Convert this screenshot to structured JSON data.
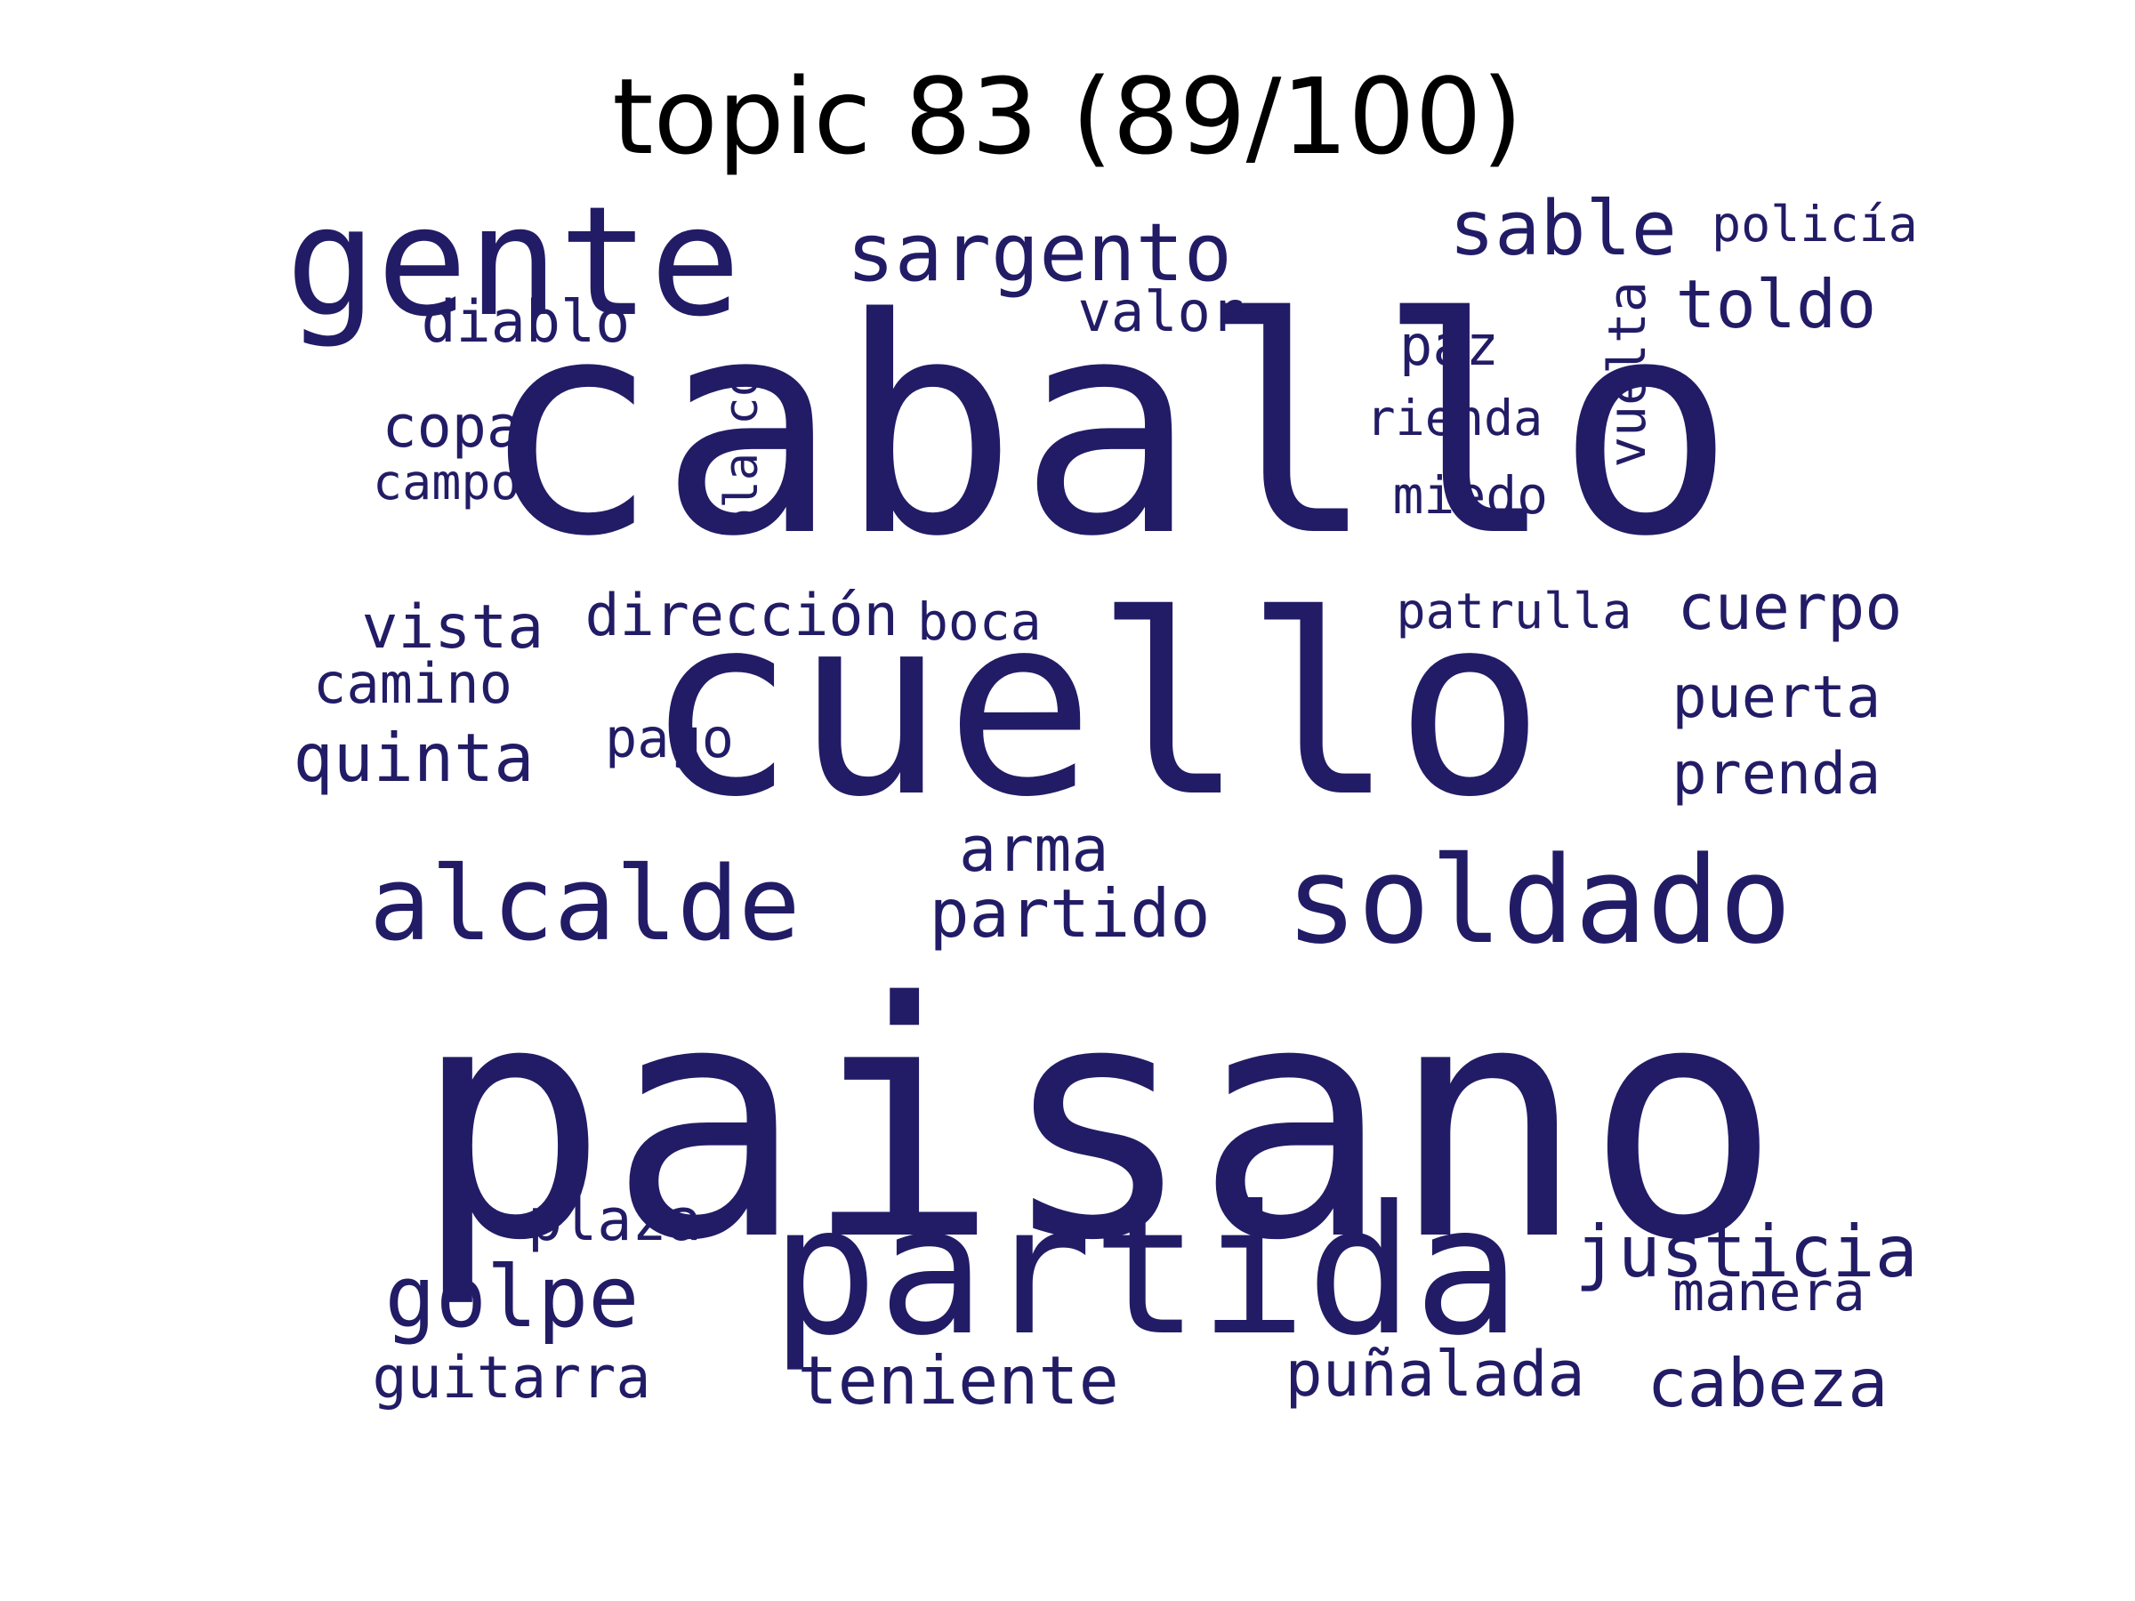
{
  "title": "topic 83 (89/100)",
  "word_color": "#221c66",
  "words": [
    {
      "text": "caballo"
    },
    {
      "text": "paisano"
    },
    {
      "text": "cuello"
    },
    {
      "text": "partida"
    },
    {
      "text": "gente"
    },
    {
      "text": "soldado"
    },
    {
      "text": "alcalde"
    },
    {
      "text": "sargento"
    },
    {
      "text": "sable"
    },
    {
      "text": "golpe"
    },
    {
      "text": "justicia"
    },
    {
      "text": "toldo"
    },
    {
      "text": "teniente"
    },
    {
      "text": "cabeza"
    },
    {
      "text": "cuerpo"
    },
    {
      "text": "quinta"
    },
    {
      "text": "puñalada"
    },
    {
      "text": "partido"
    },
    {
      "text": "arma"
    },
    {
      "text": "guitarra"
    },
    {
      "text": "dirección"
    },
    {
      "text": "vista"
    },
    {
      "text": "puerta"
    },
    {
      "text": "prenda"
    },
    {
      "text": "plaza"
    },
    {
      "text": "manera"
    },
    {
      "text": "camino"
    },
    {
      "text": "diablo"
    },
    {
      "text": "valor"
    },
    {
      "text": "copa"
    },
    {
      "text": "paz"
    },
    {
      "text": "vuelta"
    },
    {
      "text": "patrulla"
    },
    {
      "text": "policía"
    },
    {
      "text": "rienda"
    },
    {
      "text": "miedo"
    },
    {
      "text": "blanco"
    },
    {
      "text": "campo"
    },
    {
      "text": "boca"
    },
    {
      "text": "pago"
    }
  ]
}
